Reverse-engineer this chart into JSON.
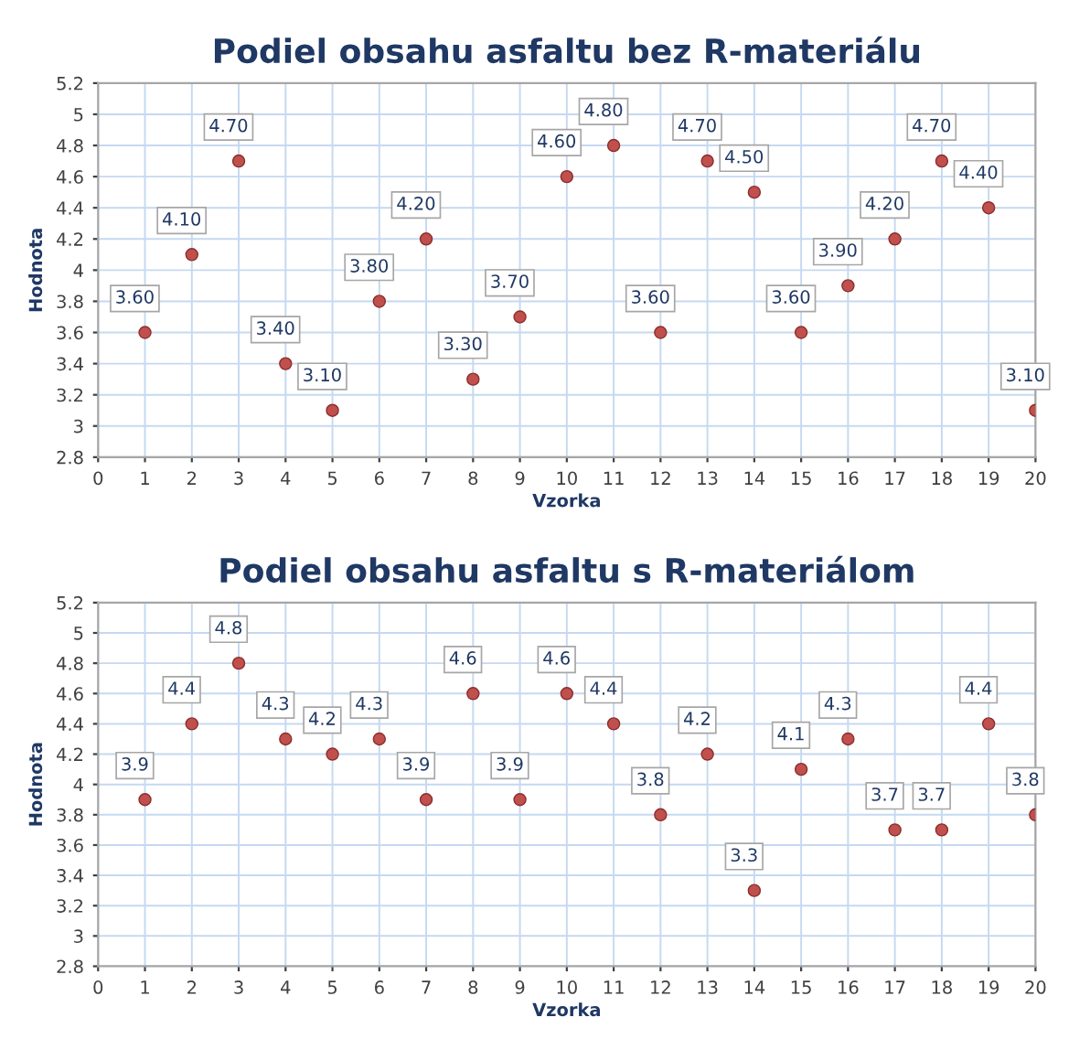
{
  "chart_data": [
    {
      "type": "scatter",
      "title": "Podiel obsahu asfaltu bez R-materiálu",
      "xlabel": "Vzorka",
      "ylabel": "Hodnota",
      "x": [
        1,
        2,
        3,
        4,
        5,
        6,
        7,
        8,
        9,
        10,
        11,
        12,
        13,
        14,
        15,
        16,
        17,
        18,
        19,
        20
      ],
      "values": [
        3.6,
        4.1,
        4.7,
        3.4,
        3.1,
        3.8,
        4.2,
        3.3,
        3.7,
        4.6,
        4.8,
        3.6,
        4.7,
        4.5,
        3.6,
        3.9,
        4.2,
        4.7,
        4.4,
        3.1
      ],
      "value_labels": [
        "3.60",
        "4.10",
        "4.70",
        "3.40",
        "3.10",
        "3.80",
        "4.20",
        "3.30",
        "3.70",
        "4.60",
        "4.80",
        "3.60",
        "4.70",
        "4.50",
        "3.60",
        "3.90",
        "4.20",
        "4.70",
        "4.40",
        "3.10"
      ],
      "color": "#c0504d",
      "marker": "circle",
      "xlim": [
        0,
        20
      ],
      "xticks": [
        0,
        1,
        2,
        3,
        4,
        5,
        6,
        7,
        8,
        9,
        10,
        11,
        12,
        13,
        14,
        15,
        16,
        17,
        18,
        19,
        20
      ],
      "ylim": [
        2.8,
        5.2
      ],
      "yticks": [
        2.8,
        3,
        3.2,
        3.4,
        3.6,
        3.8,
        4,
        4.2,
        4.4,
        4.6,
        4.8,
        5,
        5.2
      ],
      "grid": true,
      "legend": false
    },
    {
      "type": "scatter",
      "title": "Podiel obsahu asfaltu s R-materiálom",
      "xlabel": "Vzorka",
      "ylabel": "Hodnota",
      "x": [
        1,
        2,
        3,
        4,
        5,
        6,
        7,
        8,
        9,
        10,
        11,
        12,
        13,
        14,
        15,
        16,
        17,
        18,
        19,
        20
      ],
      "values": [
        3.9,
        4.4,
        4.8,
        4.3,
        4.2,
        4.3,
        3.9,
        4.6,
        3.9,
        4.6,
        4.4,
        3.8,
        4.2,
        3.3,
        4.1,
        4.3,
        3.7,
        3.7,
        4.4,
        3.8
      ],
      "data_labels": true,
      "color": "#c0504d",
      "marker": "circle",
      "xlim": [
        0,
        20
      ],
      "xticks": [
        0,
        1,
        2,
        3,
        4,
        5,
        6,
        7,
        8,
        9,
        10,
        11,
        12,
        13,
        14,
        15,
        16,
        17,
        18,
        19,
        20
      ],
      "ylim": [
        2.8,
        5.2
      ],
      "yticks": [
        2.8,
        3,
        3.2,
        3.4,
        3.6,
        3.8,
        4,
        4.2,
        4.4,
        4.6,
        4.8,
        5,
        5.2
      ],
      "grid": true,
      "legend": false
    }
  ]
}
